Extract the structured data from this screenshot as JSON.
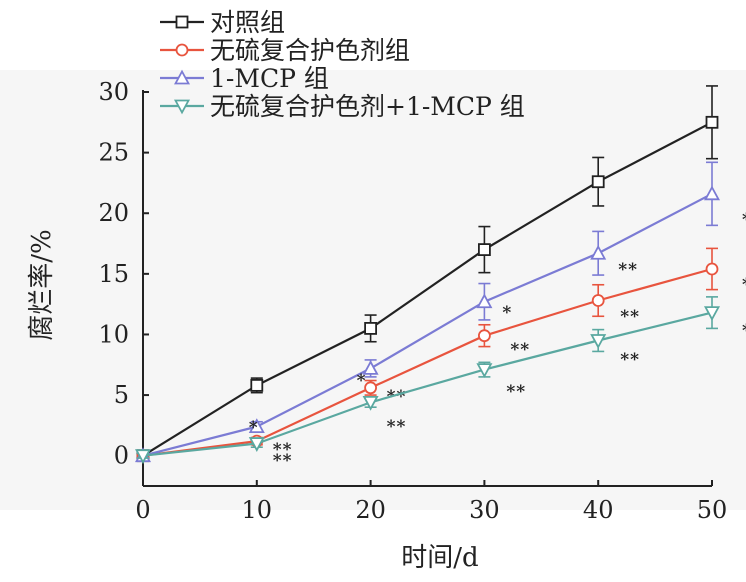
{
  "chart_data": {
    "type": "line",
    "title": "",
    "xlabel": "时间/d",
    "ylabel": "腐烂率/%",
    "x": [
      0,
      10,
      20,
      30,
      40,
      50
    ],
    "xlim": [
      0,
      50
    ],
    "ylim": [
      -2.5,
      30
    ],
    "xticks": [
      "0",
      "10",
      "20",
      "30",
      "40",
      "50"
    ],
    "yticks": [
      "0",
      "5",
      "10",
      "15",
      "20",
      "25",
      "30"
    ],
    "grid": false,
    "legend_position": "top-left",
    "series": [
      {
        "name": "对照组",
        "marker": "square",
        "color": "#222222",
        "values": [
          0,
          5.8,
          10.5,
          17,
          22.6,
          27.5
        ],
        "errors": [
          0.3,
          0.6,
          1.1,
          1.9,
          2.0,
          3.0
        ],
        "significance": [
          "",
          "",
          "",
          "",
          "",
          ""
        ]
      },
      {
        "name": "无硫复合护色剂组",
        "marker": "circle",
        "color": "#e8543e",
        "values": [
          0,
          1.2,
          5.6,
          9.9,
          12.8,
          15.4
        ],
        "errors": [
          0.2,
          0.3,
          0.6,
          0.9,
          1.3,
          1.7
        ],
        "significance": [
          "",
          "**",
          "**",
          "**",
          "**",
          "**"
        ]
      },
      {
        "name": "1-MCP 组",
        "marker": "triangle-up",
        "color": "#7b7bd4",
        "values": [
          0,
          2.4,
          7.2,
          12.7,
          16.7,
          21.6
        ],
        "errors": [
          0.2,
          0.4,
          0.7,
          1.5,
          1.8,
          2.6
        ],
        "significance": [
          "",
          "*",
          "*",
          "*",
          "**",
          "**"
        ]
      },
      {
        "name": "无硫复合护色剂+1-MCP 组",
        "marker": "triangle-down",
        "color": "#5aa8a0",
        "values": [
          0,
          1.0,
          4.4,
          7.1,
          9.5,
          11.8
        ],
        "errors": [
          0.2,
          0.3,
          0.4,
          0.6,
          0.9,
          1.3
        ],
        "significance": [
          "",
          "**",
          "**",
          "**",
          "**",
          "**"
        ]
      }
    ]
  }
}
